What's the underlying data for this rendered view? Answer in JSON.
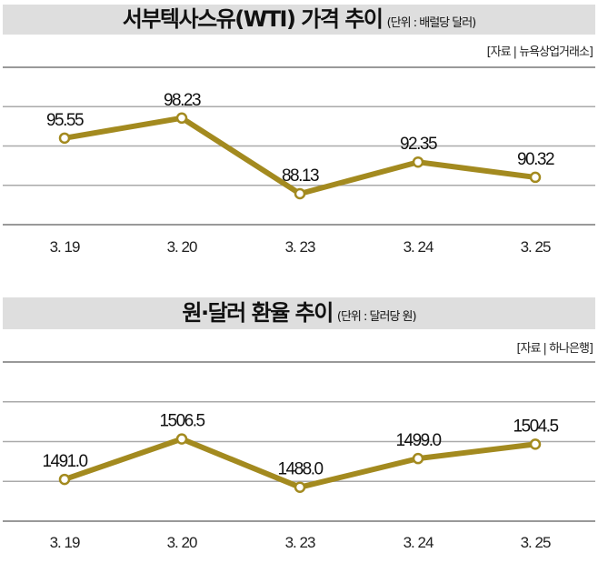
{
  "chart_data": [
    {
      "type": "line",
      "title": "서부텍사스유(WTI) 가격 추이",
      "unit": "(단위 : 배럴당 달러)",
      "source": "[자료 | 뉴욕상업거래소]",
      "categories": [
        "3. 19",
        "3. 20",
        "3. 23",
        "3. 24",
        "3. 25"
      ],
      "values": [
        95.55,
        98.23,
        88.13,
        92.35,
        90.32
      ],
      "labels": [
        "95.55",
        "98.23",
        "88.13",
        "92.35",
        "90.32"
      ],
      "ylim": [
        84,
        105
      ],
      "grid": true,
      "color": "#a38a1f"
    },
    {
      "type": "line",
      "title": "원·달러 환율 추이",
      "unit": "(단위 : 달러당 원)",
      "source": "[자료 | 하나은행]",
      "categories": [
        "3. 19",
        "3. 20",
        "3. 23",
        "3. 24",
        "3. 25"
      ],
      "values": [
        1491.0,
        1506.5,
        1488.0,
        1499.0,
        1504.5
      ],
      "labels": [
        "1491.0",
        "1506.5",
        "1488.0",
        "1499.0",
        "1504.5"
      ],
      "ylim": [
        1475,
        1536
      ],
      "grid": true,
      "color": "#a38a1f"
    }
  ]
}
